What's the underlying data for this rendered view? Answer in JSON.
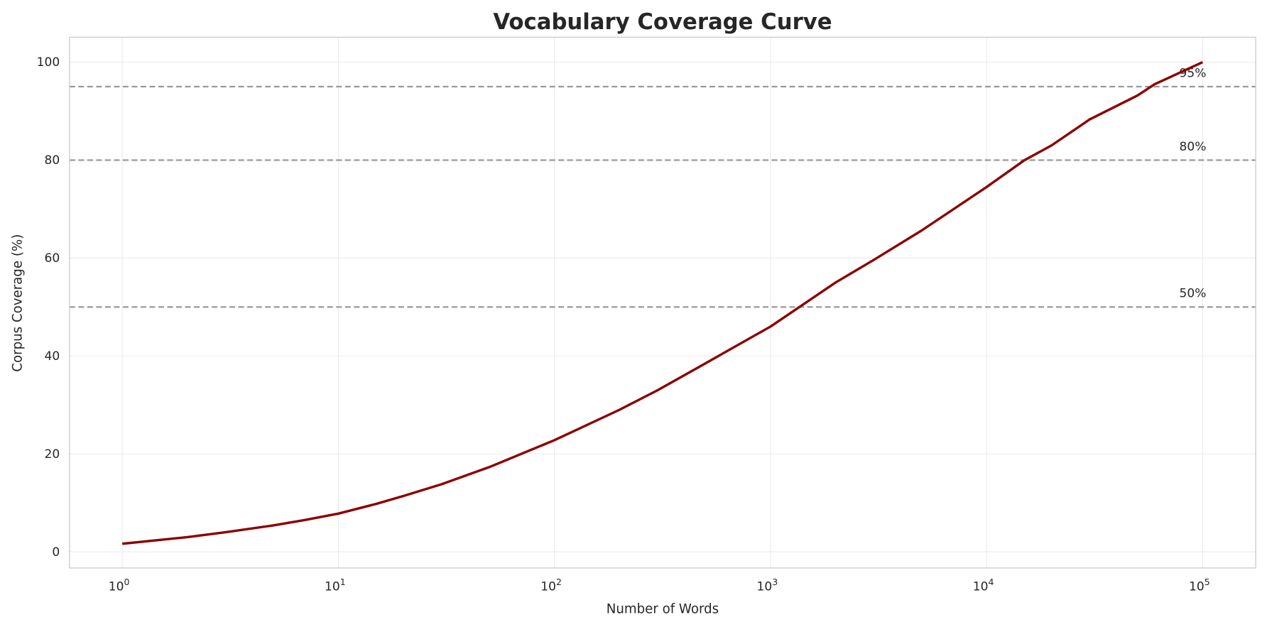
{
  "chart_data": {
    "type": "line",
    "title": "Vocabulary Coverage Curve",
    "xlabel": "Number of Words",
    "ylabel": "Corpus Coverage (%)",
    "xscale": "log",
    "xlim": [
      0.57,
      176000
    ],
    "ylim": [
      -3.3,
      105.1
    ],
    "grid": true,
    "x_ticks": [
      {
        "base": "10",
        "exp": "0",
        "value": 1
      },
      {
        "base": "10",
        "exp": "1",
        "value": 10
      },
      {
        "base": "10",
        "exp": "2",
        "value": 100
      },
      {
        "base": "10",
        "exp": "3",
        "value": 1000
      },
      {
        "base": "10",
        "exp": "4",
        "value": 10000
      },
      {
        "base": "10",
        "exp": "5",
        "value": 100000
      }
    ],
    "y_ticks": [
      "0",
      "20",
      "40",
      "60",
      "80",
      "100"
    ],
    "series": [
      {
        "color": "#8b0000",
        "x": [
          1,
          2,
          3,
          5,
          7,
          10,
          15,
          20,
          30,
          50,
          100,
          200,
          300,
          500,
          1000,
          2000,
          3000,
          5000,
          10000,
          15000,
          20000,
          30000,
          50000,
          60000,
          100000
        ],
        "y": [
          1.65,
          3.0,
          4.0,
          5.4,
          6.5,
          7.8,
          9.8,
          11.4,
          13.8,
          17.3,
          22.8,
          29.0,
          33.0,
          38.5,
          46.0,
          55.0,
          59.6,
          65.6,
          74.5,
          80.0,
          83.0,
          88.3,
          93.2,
          95.5,
          100
        ]
      }
    ],
    "reference_lines": [
      {
        "y": 95,
        "label": "95%",
        "color": "#999999"
      },
      {
        "y": 80,
        "label": "80%",
        "color": "#999999"
      },
      {
        "y": 50,
        "label": "50%",
        "color": "#999999"
      }
    ]
  }
}
